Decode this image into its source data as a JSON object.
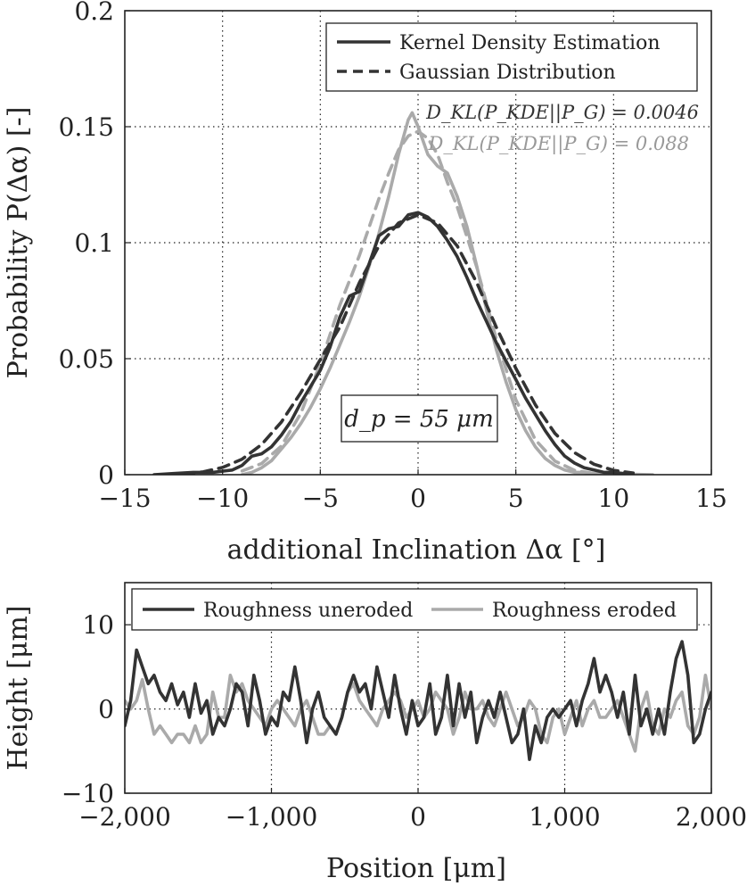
{
  "chart_data": [
    {
      "type": "line",
      "xlabel": "additional Inclination Δα [°]",
      "ylabel": "Probability P(Δα) [-]",
      "xlim": [
        -15,
        15
      ],
      "ylim": [
        0,
        0.2
      ],
      "xticks": [
        -15,
        -10,
        -5,
        0,
        5,
        10,
        15
      ],
      "xtick_labels": [
        "−15",
        "−10",
        "−5",
        "0",
        "5",
        "10",
        "15"
      ],
      "yticks": [
        0,
        0.05,
        0.1,
        0.15,
        0.2
      ],
      "ytick_labels": [
        "0",
        "0.05",
        "0.1",
        "0.15",
        "0.2"
      ],
      "grid": true,
      "legend": {
        "position": "top-right",
        "entries": [
          {
            "label": "Kernel Density Estimation",
            "style": "solid"
          },
          {
            "label": "Gaussian Distribution",
            "style": "dashed"
          }
        ]
      },
      "annotations": [
        {
          "text": "D_KL(P_KDE||P_G) = 0.0046",
          "color": "#333333"
        },
        {
          "text": "D_KL(P_KDE||P_G) = 0.088",
          "color": "#999999"
        }
      ],
      "inset_label": "d_p = 55 μm",
      "series": [
        {
          "name": "KDE dark",
          "color": "#333333",
          "dashed": false,
          "x": [
            -13.5,
            -12.5,
            -11.5,
            -10.5,
            -9.5,
            -9.0,
            -8.5,
            -8.0,
            -7.5,
            -7.0,
            -6.5,
            -6.0,
            -5.5,
            -5.0,
            -4.5,
            -4.0,
            -3.5,
            -3.0,
            -2.5,
            -2.0,
            -1.5,
            -1.0,
            -0.5,
            0.0,
            0.5,
            1.0,
            1.5,
            2.0,
            2.5,
            3.0,
            3.5,
            4.0,
            4.5,
            5.0,
            5.5,
            6.0,
            6.5,
            7.0,
            7.5,
            8.0,
            8.5,
            9.0,
            9.5,
            10.0,
            10.5,
            11.0
          ],
          "values": [
            0.0,
            0.0005,
            0.001,
            0.001,
            0.002,
            0.004,
            0.008,
            0.009,
            0.012,
            0.017,
            0.023,
            0.031,
            0.038,
            0.045,
            0.055,
            0.068,
            0.077,
            0.079,
            0.091,
            0.103,
            0.106,
            0.107,
            0.112,
            0.113,
            0.111,
            0.107,
            0.101,
            0.094,
            0.085,
            0.075,
            0.066,
            0.057,
            0.049,
            0.041,
            0.033,
            0.026,
            0.019,
            0.013,
            0.008,
            0.005,
            0.003,
            0.002,
            0.001,
            0.001,
            0.0005,
            0.0
          ]
        },
        {
          "name": "Gaussian dark",
          "color": "#333333",
          "dashed": true,
          "x": [
            -12.0,
            -11.0,
            -10.0,
            -9.0,
            -8.0,
            -7.0,
            -6.0,
            -5.0,
            -4.0,
            -3.0,
            -2.0,
            -1.0,
            0.0,
            1.0,
            2.0,
            3.0,
            4.0,
            5.0,
            6.0,
            7.0,
            8.0,
            9.0,
            10.0,
            11.0
          ],
          "values": [
            0.0004,
            0.0012,
            0.0031,
            0.0067,
            0.013,
            0.0226,
            0.0353,
            0.0496,
            0.0636,
            0.0828,
            0.0986,
            0.1085,
            0.112,
            0.1085,
            0.0986,
            0.0828,
            0.0636,
            0.0458,
            0.0301,
            0.0178,
            0.0095,
            0.0045,
            0.0019,
            0.0007
          ]
        },
        {
          "name": "KDE light",
          "color": "#aaaaaa",
          "dashed": false,
          "x": [
            -9.0,
            -8.5,
            -8.0,
            -7.5,
            -7.0,
            -6.5,
            -6.0,
            -5.5,
            -5.0,
            -4.5,
            -4.0,
            -3.5,
            -3.0,
            -2.5,
            -2.0,
            -1.5,
            -1.0,
            -0.5,
            -0.3,
            0.0,
            0.5,
            1.0,
            1.5,
            2.0,
            2.5,
            3.0,
            3.5,
            4.0,
            4.5,
            5.0,
            5.5,
            6.0,
            6.5,
            7.0,
            7.5,
            8.0,
            8.5,
            9.0,
            10.0,
            11.0,
            12.0
          ],
          "values": [
            0.0,
            0.001,
            0.003,
            0.006,
            0.011,
            0.016,
            0.022,
            0.029,
            0.037,
            0.046,
            0.056,
            0.066,
            0.077,
            0.09,
            0.104,
            0.12,
            0.138,
            0.153,
            0.156,
            0.15,
            0.138,
            0.133,
            0.13,
            0.12,
            0.107,
            0.09,
            0.071,
            0.054,
            0.04,
            0.028,
            0.019,
            0.012,
            0.007,
            0.004,
            0.002,
            0.001,
            0.001,
            0.0005,
            0.0005,
            0.0002,
            0.0
          ]
        },
        {
          "name": "Gaussian light",
          "color": "#aaaaaa",
          "dashed": true,
          "x": [
            -9.0,
            -8.0,
            -7.0,
            -6.0,
            -5.0,
            -4.0,
            -3.0,
            -2.0,
            -1.5,
            -1.0,
            -0.5,
            0.0,
            0.5,
            1.0,
            1.5,
            2.0,
            3.0,
            4.0,
            5.0,
            6.0,
            7.0,
            8.0,
            9.0,
            10.0,
            11.0
          ],
          "values": [
            0.0016,
            0.0048,
            0.0123,
            0.0264,
            0.0478,
            0.0731,
            0.0945,
            0.119,
            0.13,
            0.14,
            0.146,
            0.148,
            0.145,
            0.138,
            0.126,
            0.1155,
            0.0895,
            0.0585,
            0.0323,
            0.015,
            0.0059,
            0.0019,
            0.0005,
            0.0001,
            0.0
          ]
        }
      ]
    },
    {
      "type": "line",
      "xlabel": "Position [μm]",
      "ylabel": "Height [μm]",
      "xlim": [
        -2000,
        2000
      ],
      "ylim": [
        -10,
        15
      ],
      "xticks": [
        -2000,
        -1000,
        0,
        1000,
        2000
      ],
      "xtick_labels": [
        "−2,000",
        "−1,000",
        "0",
        "1,000",
        "2,000"
      ],
      "yticks": [
        -10,
        0,
        10
      ],
      "ytick_labels": [
        "−10",
        "0",
        "10"
      ],
      "grid": true,
      "legend": {
        "position": "top",
        "entries": [
          {
            "label": "Roughness uneroded",
            "color": "#333333"
          },
          {
            "label": "Roughness eroded",
            "color": "#aaaaaa"
          }
        ]
      },
      "series": [
        {
          "name": "Roughness uneroded",
          "color": "#333333",
          "x": [
            -2000,
            -1960,
            -1920,
            -1880,
            -1840,
            -1800,
            -1760,
            -1720,
            -1680,
            -1640,
            -1600,
            -1560,
            -1520,
            -1480,
            -1440,
            -1400,
            -1360,
            -1320,
            -1280,
            -1240,
            -1200,
            -1160,
            -1120,
            -1080,
            -1040,
            -1000,
            -960,
            -920,
            -880,
            -840,
            -800,
            -760,
            -720,
            -680,
            -640,
            -600,
            -560,
            -520,
            -480,
            -440,
            -400,
            -360,
            -320,
            -280,
            -240,
            -200,
            -160,
            -120,
            -80,
            -40,
            0,
            40,
            80,
            120,
            160,
            200,
            240,
            280,
            320,
            360,
            400,
            440,
            480,
            520,
            560,
            600,
            640,
            680,
            720,
            760,
            800,
            840,
            880,
            920,
            960,
            1000,
            1040,
            1080,
            1120,
            1160,
            1200,
            1240,
            1280,
            1320,
            1360,
            1400,
            1440,
            1480,
            1520,
            1560,
            1600,
            1640,
            1680,
            1720,
            1760,
            1800,
            1840,
            1880,
            1920,
            1960,
            2000
          ],
          "values": [
            -2,
            1,
            7,
            5,
            3,
            4,
            2,
            1,
            3,
            0.5,
            2,
            -1,
            3,
            -0.5,
            1,
            -3,
            -1,
            -2,
            0,
            3,
            2,
            -2,
            4,
            1,
            -3,
            -1,
            -2,
            2,
            1,
            5,
            1,
            -4,
            0,
            2,
            -1,
            -2,
            -3,
            -1,
            2,
            4,
            2,
            3,
            0,
            5,
            2,
            -1,
            4,
            0,
            -3,
            1,
            -2,
            -1,
            3,
            -3,
            -1,
            4,
            -2,
            3,
            -1,
            2,
            -4,
            -1,
            1,
            -1,
            2,
            -1,
            -4,
            -3,
            0,
            -6,
            -2,
            -4,
            -1,
            0,
            -1,
            0,
            1,
            -2,
            1,
            3,
            6,
            2,
            4,
            2,
            -1,
            2,
            -3,
            4,
            -2,
            0,
            -3,
            0,
            -3,
            2,
            6,
            8,
            4,
            -4,
            -3,
            0,
            2
          ]
        },
        {
          "name": "Roughness eroded",
          "color": "#aaaaaa",
          "x": [
            -2000,
            -1960,
            -1920,
            -1880,
            -1840,
            -1800,
            -1760,
            -1720,
            -1680,
            -1640,
            -1600,
            -1560,
            -1520,
            -1480,
            -1440,
            -1400,
            -1360,
            -1320,
            -1280,
            -1240,
            -1200,
            -1160,
            -1120,
            -1080,
            -1040,
            -1000,
            -960,
            -920,
            -880,
            -840,
            -800,
            -760,
            -720,
            -680,
            -640,
            -600,
            -560,
            -520,
            -480,
            -440,
            -400,
            -360,
            -320,
            -280,
            -240,
            -200,
            -160,
            -120,
            -80,
            -40,
            0,
            40,
            80,
            120,
            160,
            200,
            240,
            280,
            320,
            360,
            400,
            440,
            480,
            520,
            560,
            600,
            640,
            680,
            720,
            760,
            800,
            840,
            880,
            920,
            960,
            1000,
            1040,
            1080,
            1120,
            1160,
            1200,
            1240,
            1280,
            1320,
            1360,
            1400,
            1440,
            1480,
            1520,
            1560,
            1600,
            1640,
            1680,
            1720,
            1760,
            1800,
            1840,
            1880,
            1920,
            1960,
            2000
          ],
          "values": [
            1,
            0,
            1,
            3.5,
            0,
            -3,
            -2,
            -3,
            -4,
            -3,
            -3,
            -4,
            -2,
            -4,
            -3,
            2,
            -1,
            -1,
            4,
            2,
            3,
            1,
            0,
            -1,
            -2,
            0,
            1,
            0,
            -1,
            -2,
            0,
            1,
            -1,
            -3,
            -3,
            -2,
            -3,
            -1,
            2,
            3,
            1,
            0,
            -1,
            -2,
            0,
            1,
            2,
            1,
            -1,
            0,
            1,
            -1,
            0,
            2,
            1,
            0,
            -3,
            -1,
            2,
            0,
            0,
            1,
            -1,
            -2,
            0,
            2,
            0,
            -2,
            -1,
            1,
            0,
            -3,
            -4,
            -1,
            0,
            -3,
            -1,
            1,
            -2,
            0,
            1,
            -1,
            -1,
            0,
            1,
            -1,
            -3,
            -5,
            0,
            2,
            -2,
            -3,
            0,
            -1,
            1,
            2,
            -2,
            -3,
            -1,
            4,
            0
          ]
        }
      ]
    }
  ]
}
